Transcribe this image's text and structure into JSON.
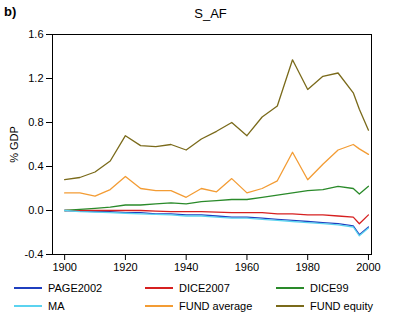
{
  "chart_data": {
    "type": "line",
    "title": "S_AF",
    "annotations": [
      "b)"
    ],
    "y_label": "% GDP",
    "x": [
      1900,
      1905,
      1910,
      1915,
      1920,
      1925,
      1930,
      1935,
      1940,
      1945,
      1950,
      1955,
      1960,
      1965,
      1970,
      1975,
      1980,
      1985,
      1990,
      1995,
      1997,
      2000
    ],
    "xlim": [
      1896,
      2001
    ],
    "xticks": [
      1900,
      1920,
      1940,
      1960,
      1980,
      2000
    ],
    "ylim": [
      -0.4,
      1.6
    ],
    "yticks": [
      {
        "value": -0.4,
        "label": "-0.4"
      },
      {
        "value": 0,
        "label": "0.0"
      },
      {
        "value": 0.4,
        "label": "0.4"
      },
      {
        "value": 0.8,
        "label": "0.8"
      },
      {
        "value": 1.2,
        "label": "1.2"
      },
      {
        "value": 1.6,
        "label": "1.6"
      }
    ],
    "grid": false,
    "legend": "bottom",
    "series": [
      {
        "name": "PAGE2002",
        "color": "#1f3fbf",
        "values": [
          0,
          -0.005,
          -0.01,
          -0.01,
          -0.02,
          -0.02,
          -0.03,
          -0.03,
          -0.04,
          -0.04,
          -0.05,
          -0.06,
          -0.06,
          -0.07,
          -0.08,
          -0.09,
          -0.1,
          -0.11,
          -0.12,
          -0.14,
          -0.22,
          -0.15
        ]
      },
      {
        "name": "DICE2007",
        "color": "#d62020",
        "values": [
          0,
          0,
          0,
          0,
          0,
          0,
          -0.005,
          -0.01,
          -0.01,
          -0.01,
          -0.015,
          -0.02,
          -0.02,
          -0.02,
          -0.03,
          -0.03,
          -0.04,
          -0.04,
          -0.05,
          -0.06,
          -0.12,
          -0.04
        ]
      },
      {
        "name": "DICE99",
        "color": "#2a8a2a",
        "values": [
          0,
          0.01,
          0.02,
          0.03,
          0.05,
          0.05,
          0.06,
          0.07,
          0.06,
          0.08,
          0.09,
          0.1,
          0.1,
          0.12,
          0.14,
          0.16,
          0.18,
          0.19,
          0.22,
          0.2,
          0.15,
          0.22
        ]
      },
      {
        "name": "MA",
        "color": "#5bd3f0",
        "values": [
          0,
          -0.01,
          -0.015,
          -0.02,
          -0.025,
          -0.03,
          -0.035,
          -0.04,
          -0.05,
          -0.05,
          -0.06,
          -0.07,
          -0.07,
          -0.08,
          -0.09,
          -0.1,
          -0.11,
          -0.12,
          -0.13,
          -0.15,
          -0.23,
          -0.16
        ]
      },
      {
        "name": "FUND average",
        "color": "#f39c34",
        "values": [
          0.16,
          0.16,
          0.13,
          0.19,
          0.31,
          0.2,
          0.18,
          0.18,
          0.12,
          0.2,
          0.17,
          0.29,
          0.16,
          0.2,
          0.27,
          0.53,
          0.28,
          0.42,
          0.55,
          0.6,
          0.56,
          0.51
        ]
      },
      {
        "name": "FUND equity",
        "color": "#7a6a1a",
        "values": [
          0.28,
          0.3,
          0.35,
          0.45,
          0.68,
          0.59,
          0.58,
          0.6,
          0.55,
          0.65,
          0.72,
          0.8,
          0.68,
          0.85,
          0.95,
          1.37,
          1.1,
          1.22,
          1.25,
          1.07,
          0.92,
          0.73
        ]
      }
    ]
  }
}
